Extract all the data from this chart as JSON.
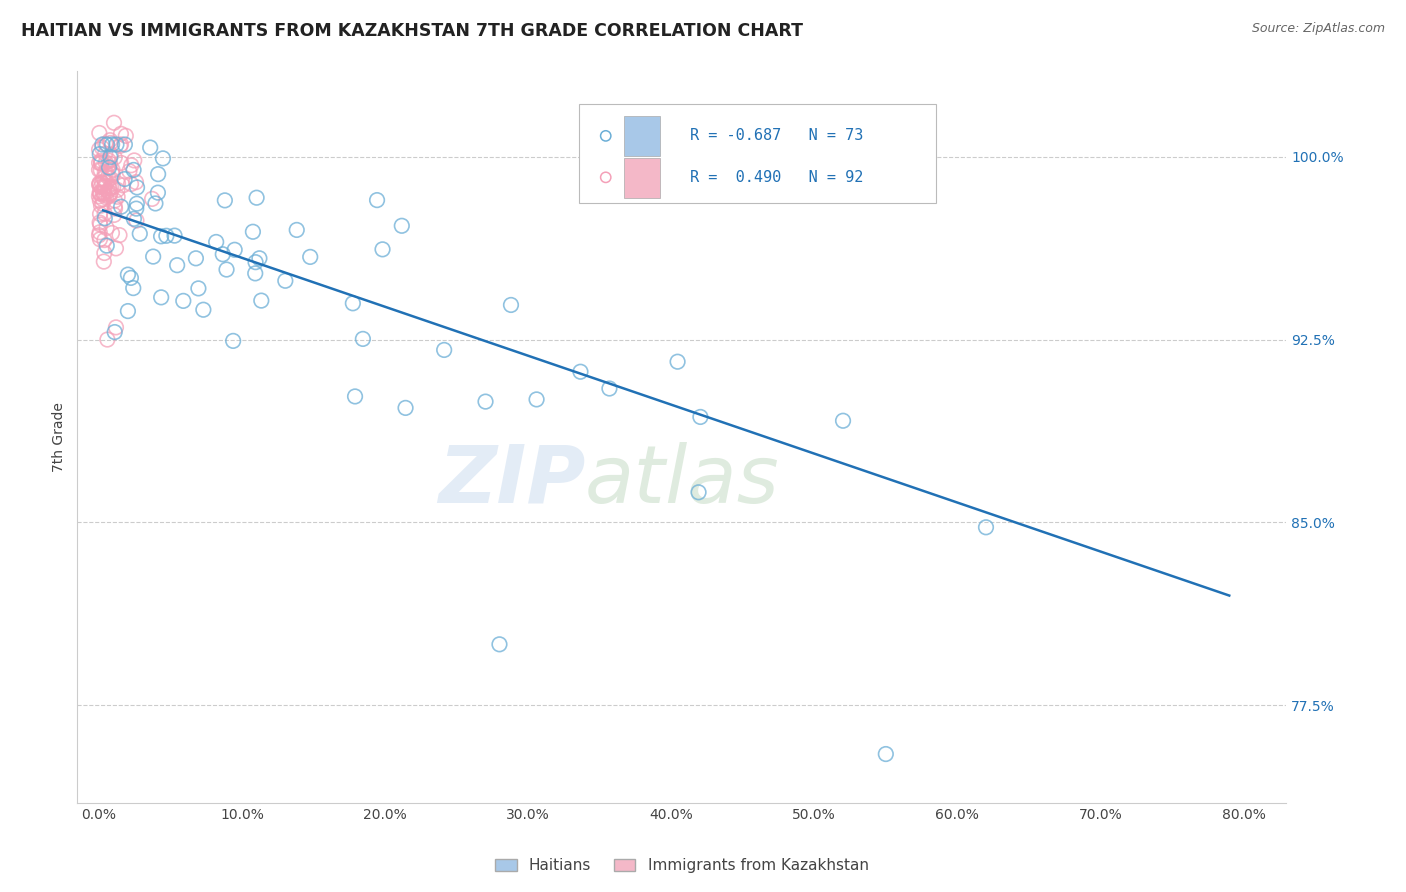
{
  "title": "HAITIAN VS IMMIGRANTS FROM KAZAKHSTAN 7TH GRADE CORRELATION CHART",
  "source": "Source: ZipAtlas.com",
  "ylabel": "7th Grade",
  "x_tick_labels": [
    "0.0%",
    "10.0%",
    "20.0%",
    "30.0%",
    "40.0%",
    "50.0%",
    "60.0%",
    "70.0%",
    "80.0%"
  ],
  "x_tick_values": [
    0.0,
    10.0,
    20.0,
    30.0,
    40.0,
    50.0,
    60.0,
    70.0,
    80.0
  ],
  "y_tick_labels": [
    "100.0%",
    "92.5%",
    "85.0%",
    "77.5%"
  ],
  "y_tick_values": [
    100.0,
    92.5,
    85.0,
    77.5
  ],
  "ylim": [
    73.5,
    103.5
  ],
  "xlim": [
    -1.5,
    83.0
  ],
  "blue_color": "#6baed6",
  "pink_color": "#f4a0b8",
  "line_color": "#2171b5",
  "trend_line_x": [
    0.3,
    79.0
  ],
  "trend_line_y": [
    97.8,
    82.0
  ],
  "grid_color": "#cccccc",
  "legend_r1": "R = -0.687",
  "legend_n1": "N = 73",
  "legend_r2": "R =  0.490",
  "legend_n2": "N = 92",
  "legend_blue_color": "#a8c8e8",
  "legend_pink_color": "#f4b8c8",
  "bottom_legend_labels": [
    "Haitians",
    "Immigrants from Kazakhstan"
  ]
}
